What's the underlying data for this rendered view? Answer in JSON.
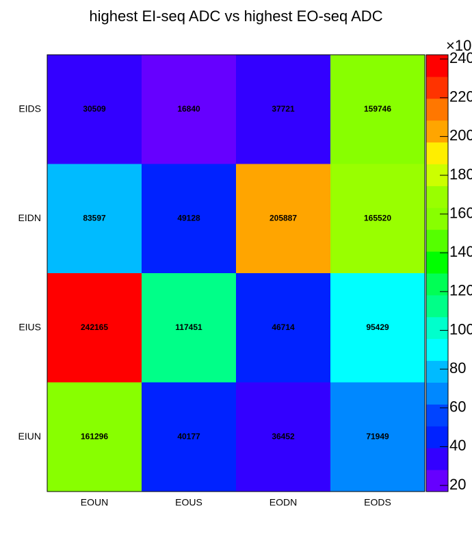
{
  "chart_data": {
    "type": "heatmap",
    "title": "highest EI-seq ADC vs highest EO-seq ADC",
    "x_categories": [
      "EOUN",
      "EOUS",
      "EODN",
      "EODS"
    ],
    "y_categories": [
      "EIUN",
      "EIUS",
      "EIDN",
      "EIDS"
    ],
    "values": [
      [
        161296,
        40177,
        36452,
        71949
      ],
      [
        242165,
        117451,
        46714,
        95429
      ],
      [
        83597,
        49128,
        205887,
        165520
      ],
      [
        30509,
        16840,
        37721,
        159746
      ]
    ],
    "zlim": [
      16840,
      242165
    ],
    "zticks": [
      {
        "value": 20000,
        "label": "20"
      },
      {
        "value": 40000,
        "label": "40"
      },
      {
        "value": 60000,
        "label": "60"
      },
      {
        "value": 80000,
        "label": "80"
      },
      {
        "value": 100000,
        "label": "100"
      },
      {
        "value": 120000,
        "label": "120"
      },
      {
        "value": 140000,
        "label": "140"
      },
      {
        "value": 160000,
        "label": "160"
      },
      {
        "value": 180000,
        "label": "180"
      },
      {
        "value": 200000,
        "label": "200"
      },
      {
        "value": 220000,
        "label": "220"
      },
      {
        "value": 240000,
        "label": "240"
      }
    ],
    "z_exponent_label": "×10",
    "palette": [
      "#6600ff",
      "#3300ff",
      "#0022ff",
      "#0044ff",
      "#0088ff",
      "#00bbff",
      "#00ffff",
      "#00ffcc",
      "#00ff88",
      "#00ff55",
      "#00ff00",
      "#55ff00",
      "#88ff00",
      "#99ff00",
      "#ccff00",
      "#ffee00",
      "#ffa500",
      "#ff7700",
      "#ff3300",
      "#ff0000"
    ]
  }
}
